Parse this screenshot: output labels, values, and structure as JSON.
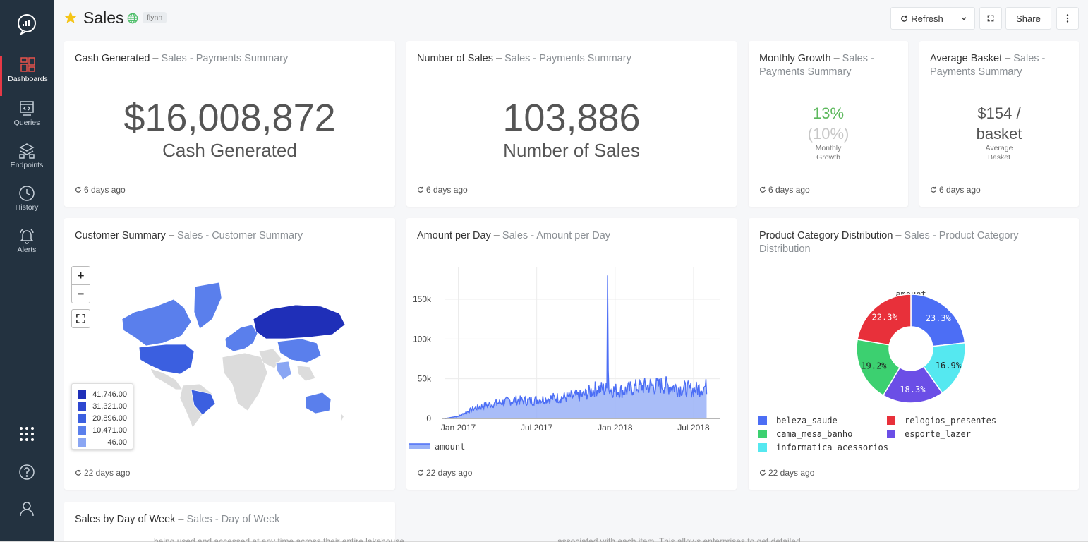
{
  "sidebar": {
    "items": [
      {
        "label": "Dashboards",
        "icon": "dashboards-icon"
      },
      {
        "label": "Queries",
        "icon": "queries-icon"
      },
      {
        "label": "Endpoints",
        "icon": "endpoints-icon"
      },
      {
        "label": "History",
        "icon": "history-icon"
      },
      {
        "label": "Alerts",
        "icon": "alerts-icon"
      }
    ],
    "accent": "#e63946"
  },
  "header": {
    "title": "Sales",
    "tag": "flynn",
    "refresh_label": "Refresh",
    "share_label": "Share"
  },
  "widgets": {
    "cash": {
      "title": "Cash Generated",
      "dash": " – ",
      "sub": "Sales - Payments Summary",
      "value": "$16,008,872",
      "label": "Cash Generated",
      "ago": "6 days ago"
    },
    "sales": {
      "title": "Number of Sales",
      "dash": " – ",
      "sub": "Sales - Payments Summary",
      "value": "103,886",
      "label": "Number of Sales",
      "ago": "6 days ago"
    },
    "growth": {
      "title": "Monthly Growth",
      "dash": " – ",
      "sub": "Sales - Payments Summary",
      "value": "13%",
      "target": "(10%)",
      "label1": "Monthly",
      "label2": "Growth",
      "ago": "6 days ago",
      "value_color": "#5cb85c"
    },
    "basket": {
      "title": "Average Basket",
      "dash": " – ",
      "sub": "Sales - Payments Summary",
      "value1": "$154 /",
      "value2": "basket",
      "label1": "Average",
      "label2": "Basket",
      "ago": "6 days ago"
    },
    "customer": {
      "title": "Customer Summary",
      "dash": " – ",
      "sub": "Sales - Customer Summary",
      "ago": "22 days ago",
      "legend": [
        {
          "value": "41,746.00",
          "color": "#1f2fb8"
        },
        {
          "value": "31,321.00",
          "color": "#2d47d0"
        },
        {
          "value": "20,896.00",
          "color": "#3b5fe0"
        },
        {
          "value": "10,471.00",
          "color": "#5a7fec"
        },
        {
          "value": "46.00",
          "color": "#8aa6f3"
        }
      ],
      "zoom_in": "+",
      "zoom_out": "−"
    },
    "amount": {
      "title": "Amount per Day",
      "dash": " – ",
      "sub": "Sales - Amount per Day",
      "ago": "22 days ago"
    },
    "category": {
      "title": "Product Category Distribution",
      "dash": " – ",
      "sub": "Sales - Product Category Distribution",
      "ago": "22 days ago"
    },
    "dow": {
      "title": "Sales by Day of Week",
      "dash": " – ",
      "sub": "Sales - Day of Week"
    }
  },
  "bottom_cutoff_text": {
    "left": "being used and accessed at any time across their entire lakehouse",
    "right": "associated with each item. This allows enterprises to get detailed"
  },
  "chart_data": [
    {
      "type": "area",
      "title": "Amount per Day",
      "x_ticks": [
        "Jan 2017",
        "Jul 2017",
        "Jan 2018",
        "Jul 2018"
      ],
      "y_ticks": [
        "0",
        "50k",
        "100k",
        "150k"
      ],
      "ylim": [
        0,
        190000
      ],
      "series": [
        {
          "name": "amount",
          "color": "#4c6ef5"
        }
      ],
      "monthly_approx": [
        {
          "month": "Dec 2016",
          "value": 0
        },
        {
          "month": "Jan 2017",
          "value": 3000
        },
        {
          "month": "Feb 2017",
          "value": 12000
        },
        {
          "month": "Mar 2017",
          "value": 17000
        },
        {
          "month": "Apr 2017",
          "value": 20000
        },
        {
          "month": "May 2017",
          "value": 23000
        },
        {
          "month": "Jun 2017",
          "value": 22000
        },
        {
          "month": "Jul 2017",
          "value": 24000
        },
        {
          "month": "Aug 2017",
          "value": 26000
        },
        {
          "month": "Sep 2017",
          "value": 27000
        },
        {
          "month": "Oct 2017",
          "value": 29000
        },
        {
          "month": "Nov 2017",
          "value": 38000
        },
        {
          "month": "Jan 2018",
          "value": 36000
        },
        {
          "month": "Feb 2018",
          "value": 35000
        },
        {
          "month": "Mar 2018",
          "value": 40000
        },
        {
          "month": "Apr 2018",
          "value": 41000
        },
        {
          "month": "May 2018",
          "value": 42000
        },
        {
          "month": "Jun 2018",
          "value": 38000
        },
        {
          "month": "Jul 2018",
          "value": 36000
        },
        {
          "month": "Aug 2018",
          "value": 40000
        }
      ],
      "peak": {
        "date": "Nov 2017",
        "value": 180000
      },
      "legend": "amount"
    },
    {
      "type": "pie",
      "title": "amount",
      "hole": true,
      "slices": [
        {
          "label": "beleza_saude",
          "value": 23.3,
          "color": "#4c6ef5"
        },
        {
          "label": "informatica_acessorios",
          "value": 16.9,
          "color": "#55e8f0"
        },
        {
          "label": "esporte_lazer",
          "value": 18.3,
          "color": "#6b4ee6"
        },
        {
          "label": "cama_mesa_banho",
          "value": 19.2,
          "color": "#3cd070"
        },
        {
          "label": "relogios_presentes",
          "value": 22.3,
          "color": "#e8303a"
        }
      ],
      "slice_labels": [
        "23.3%",
        "16.9%",
        "18.3%",
        "19.2%",
        "22.3%"
      ],
      "legend": [
        "beleza_saude",
        "relogios_presentes",
        "cama_mesa_banho",
        "esporte_lazer",
        "informatica_acessorios"
      ]
    }
  ]
}
